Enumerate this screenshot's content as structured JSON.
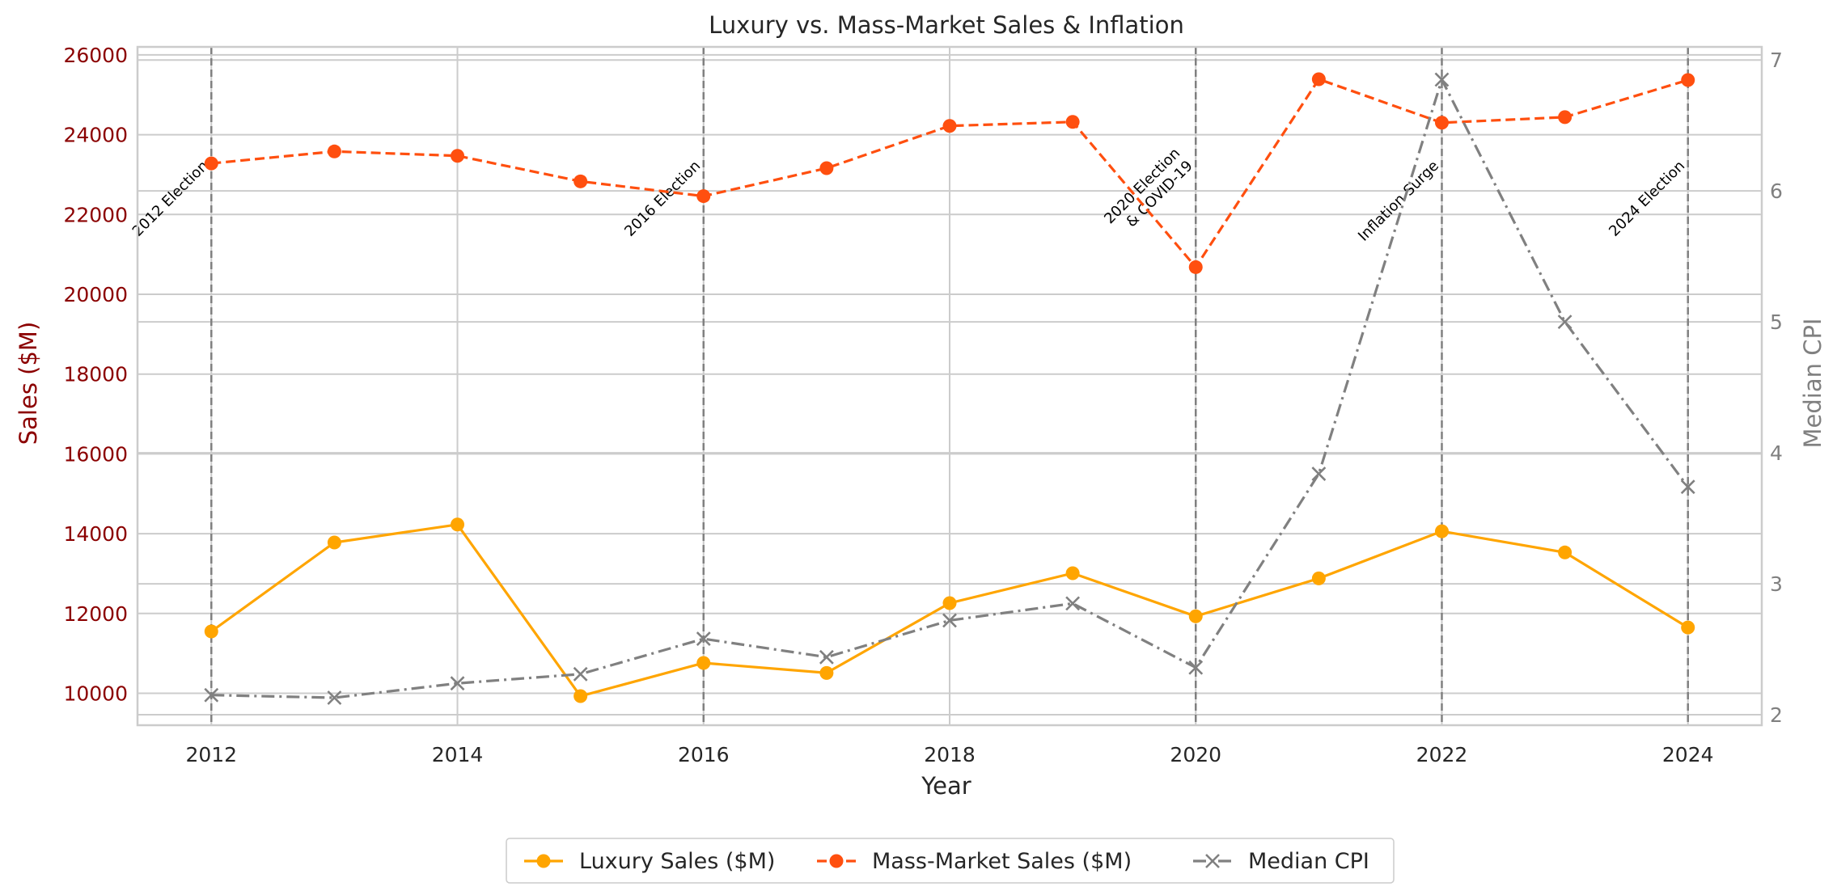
{
  "chart_data": {
    "type": "line",
    "title": "Luxury vs. Mass-Market Sales & Inflation",
    "xlabel": "Year",
    "ylabel_left": "Sales ($M)",
    "ylabel_right": "Median CPI",
    "x": [
      2012,
      2013,
      2014,
      2015,
      2016,
      2017,
      2018,
      2019,
      2020,
      2021,
      2022,
      2023,
      2024
    ],
    "x_ticks": [
      2012,
      2014,
      2016,
      2018,
      2020,
      2022,
      2024
    ],
    "xlim": [
      2011.4,
      2024.6
    ],
    "ylim_left": [
      9200,
      26200
    ],
    "yticks_left": [
      10000,
      12000,
      14000,
      16000,
      18000,
      20000,
      22000,
      24000,
      26000
    ],
    "ylim_right": [
      1.92,
      7.1
    ],
    "yticks_right": [
      2,
      3,
      4,
      5,
      6,
      7
    ],
    "grid": true,
    "legend_position": "below",
    "series": [
      {
        "name": "Luxury Sales ($M)",
        "axis": "left",
        "color": "#ffa500",
        "line_style": "solid",
        "marker": "circle",
        "values": [
          11550,
          13780,
          14230,
          9930,
          10760,
          10510,
          12260,
          13010,
          11930,
          12880,
          14060,
          13530,
          11650
        ]
      },
      {
        "name": "Mass-Market Sales ($M)",
        "axis": "left",
        "color": "#ff4f0f",
        "line_style": "dashed",
        "marker": "circle",
        "values": [
          23280,
          23580,
          23470,
          22830,
          22460,
          23160,
          24220,
          24320,
          20680,
          25390,
          24300,
          24440,
          25370
        ]
      },
      {
        "name": "Median CPI",
        "axis": "right",
        "color": "#808080",
        "line_style": "dashdot",
        "marker": "x",
        "values": [
          2.15,
          2.13,
          2.24,
          2.31,
          2.58,
          2.44,
          2.72,
          2.85,
          2.36,
          3.84,
          6.85,
          5.0,
          3.74
        ]
      }
    ],
    "annotations": [
      {
        "x": 2012,
        "lines": [
          "2012 Election"
        ]
      },
      {
        "x": 2016,
        "lines": [
          "2016 Election"
        ]
      },
      {
        "x": 2020,
        "lines": [
          "2020 Election",
          "& COVID-19"
        ]
      },
      {
        "x": 2022,
        "lines": [
          "Inflation Surge"
        ]
      },
      {
        "x": 2024,
        "lines": [
          "2024 Election"
        ]
      }
    ]
  },
  "colors": {
    "left_axis": "#8b0000",
    "right_axis": "#808080",
    "grid": "#cccccc",
    "event_line": "#808080"
  }
}
